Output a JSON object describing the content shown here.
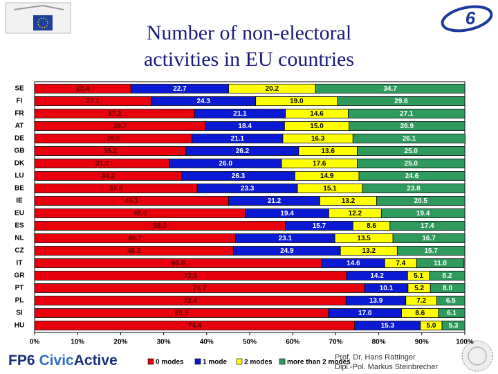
{
  "chart_data": {
    "type": "stacked-bar-horizontal",
    "title": "Number of non-electoral activities in EU countries",
    "categories": [
      "SE",
      "FI",
      "FR",
      "AT",
      "DE",
      "GB",
      "DK",
      "LU",
      "BE",
      "IE",
      "EU",
      "ES",
      "NL",
      "CZ",
      "IT",
      "GR",
      "PT",
      "PL",
      "SI",
      "HU"
    ],
    "series": [
      {
        "name": "0 modes",
        "color": "#e8000d",
        "values": [
          22.4,
          27.1,
          37.2,
          39.7,
          36.6,
          35.2,
          31.4,
          34.2,
          37.8,
          45.1,
          49.0,
          58.3,
          46.7,
          46.2,
          66.8,
          72.5,
          76.7,
          72.4,
          68.3,
          74.4
        ],
        "value_labels": [
          "22.4",
          "27.1",
          "37.2",
          "39.7",
          "36.6",
          "35.2",
          "31.4",
          "34.2",
          "37.8",
          "45.1",
          "49.0",
          "58.3",
          "46.7",
          "46.2",
          "66.8",
          "72.5",
          "76.7",
          "72.4",
          "68.3",
          "74.4"
        ]
      },
      {
        "name": "1 mode",
        "color": "#0a1ad4",
        "values": [
          22.7,
          24.3,
          21.1,
          18.4,
          21.1,
          26.2,
          26.0,
          26.3,
          23.3,
          21.2,
          19.4,
          15.7,
          23.1,
          24.9,
          14.6,
          14.2,
          10.1,
          13.9,
          17.0,
          15.3
        ],
        "value_labels": [
          "22.7",
          "24.3",
          "21.1",
          "18.4",
          "21.1",
          "26.2",
          "26.0",
          "26.3",
          "23.3",
          "21.2",
          "19.4",
          "15.7",
          "23.1",
          "24.9",
          "14.6",
          "14.2",
          "10.1",
          "13.9",
          "17.0",
          "15.3"
        ]
      },
      {
        "name": "2 modes",
        "color": "#ffff00",
        "values": [
          20.2,
          19.0,
          14.6,
          15.0,
          16.3,
          13.6,
          17.6,
          14.9,
          15.1,
          13.2,
          12.2,
          8.6,
          13.5,
          13.2,
          7.4,
          5.1,
          5.2,
          7.2,
          8.6,
          5.0
        ],
        "value_labels": [
          "20.2",
          "19.0",
          "14.6",
          "15.0",
          "16.3",
          "13.6",
          "17.6",
          "14.9",
          "15.1",
          "13.2",
          "12.2",
          "8.6",
          "13.5",
          "13.2",
          "7.4",
          "5.1",
          "5.2",
          "7.2",
          "8.6",
          "5.0"
        ]
      },
      {
        "name": "more than 2 modes",
        "color": "#2e9a5c",
        "values": [
          34.7,
          29.6,
          27.1,
          26.9,
          26.1,
          25.0,
          25.0,
          24.6,
          23.8,
          20.5,
          19.4,
          17.4,
          16.7,
          15.7,
          11.0,
          8.2,
          8.0,
          6.5,
          6.1,
          5.3
        ],
        "value_labels": [
          "34.7",
          "29.6",
          "27.1",
          "26.9",
          "26.1",
          "25.0",
          "25.0",
          "24.6",
          "23.8",
          "20.5",
          "19.4",
          "17.4",
          "16.7",
          "15.7",
          "11.0",
          "8.2",
          "8.0",
          "6.5",
          "6.1",
          "5.3"
        ]
      }
    ],
    "xlim": [
      0,
      100
    ],
    "xticks": [
      {
        "value": 0,
        "label": "0%"
      },
      {
        "value": 10,
        "label": "10%"
      },
      {
        "value": 20,
        "label": "20%"
      },
      {
        "value": 30,
        "label": "30%"
      },
      {
        "value": 40,
        "label": "40%"
      },
      {
        "value": 50,
        "label": "50%"
      },
      {
        "value": 60,
        "label": "60%"
      },
      {
        "value": 70,
        "label": "70%"
      },
      {
        "value": 80,
        "label": "80%"
      },
      {
        "value": 90,
        "label": "90%"
      },
      {
        "value": 100,
        "label": "100%"
      }
    ],
    "legend": "bottom"
  },
  "footer": {
    "brand": [
      "FP6",
      "Civic",
      "Active"
    ],
    "authors": [
      "Prof. Dr. Hans Rattinger",
      "Dipl.-Pol. Markus Steinbrecher"
    ]
  }
}
